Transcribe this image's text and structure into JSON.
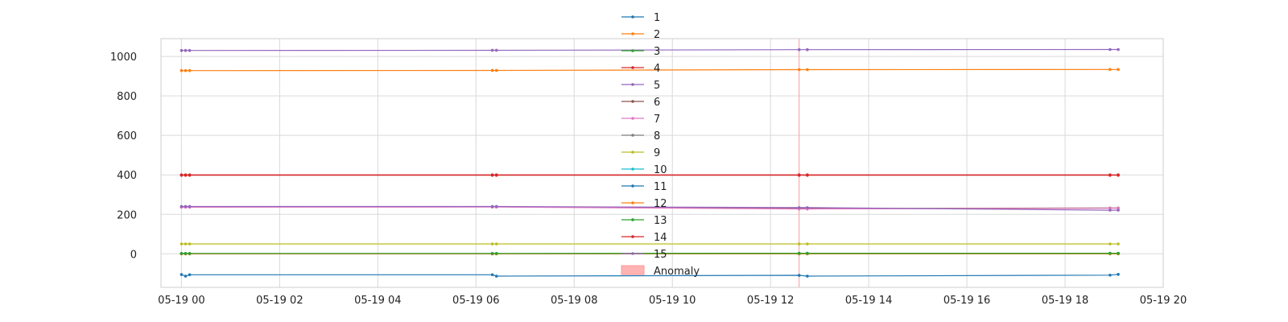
{
  "chart_data": {
    "type": "line",
    "title": "",
    "xlabel": "",
    "ylabel": "",
    "x_axis": {
      "type": "datetime",
      "range": [
        "2024-05-18T23:35",
        "2024-05-19T20:00"
      ],
      "ticks": [
        {
          "t": "2024-05-19T00:00",
          "label": "05-19 00"
        },
        {
          "t": "2024-05-19T02:00",
          "label": "05-19 02"
        },
        {
          "t": "2024-05-19T04:00",
          "label": "05-19 04"
        },
        {
          "t": "2024-05-19T06:00",
          "label": "05-19 06"
        },
        {
          "t": "2024-05-19T08:00",
          "label": "05-19 08"
        },
        {
          "t": "2024-05-19T10:00",
          "label": "05-19 10"
        },
        {
          "t": "2024-05-19T12:00",
          "label": "05-19 12"
        },
        {
          "t": "2024-05-19T14:00",
          "label": "05-19 14"
        },
        {
          "t": "2024-05-19T16:00",
          "label": "05-19 16"
        },
        {
          "t": "2024-05-19T18:00",
          "label": "05-19 18"
        },
        {
          "t": "2024-05-19T20:00",
          "label": "05-19 20"
        }
      ]
    },
    "y_axis": {
      "range": [
        -170,
        1090
      ],
      "ticks": [
        0,
        200,
        400,
        600,
        800,
        1000
      ]
    },
    "grid": true,
    "legend_position": "top-center",
    "x": [
      "2024-05-19T00:00",
      "2024-05-19T00:05",
      "2024-05-19T00:10",
      "2024-05-19T06:20",
      "2024-05-19T06:25",
      "2024-05-19T12:35",
      "2024-05-19T12:45",
      "2024-05-19T18:55",
      "2024-05-19T19:05"
    ],
    "series": [
      {
        "name": "1",
        "color": "#1f77b4",
        "values": [
          -105,
          -113,
          -106,
          -106,
          -113,
          -109,
          -113,
          -108,
          -104
        ]
      },
      {
        "name": "2",
        "color": "#ff7f0e",
        "values": [
          928,
          928,
          928,
          929,
          929,
          933,
          933,
          934,
          934
        ]
      },
      {
        "name": "3",
        "color": "#2ca02c",
        "values": [
          0,
          0,
          0,
          0,
          0,
          0,
          0,
          0,
          0
        ]
      },
      {
        "name": "4",
        "color": "#d62728",
        "values": [
          398,
          398,
          398,
          398,
          398,
          398,
          398,
          398,
          398
        ]
      },
      {
        "name": "5",
        "color": "#9467bd",
        "values": [
          1030,
          1030,
          1030,
          1031,
          1031,
          1034,
          1034,
          1035,
          1035
        ]
      },
      {
        "name": "6",
        "color": "#8c564b",
        "values": [
          238,
          238,
          238,
          238,
          238,
          229,
          229,
          232,
          232
        ]
      },
      {
        "name": "7",
        "color": "#e377c2",
        "values": [
          236,
          236,
          236,
          237,
          237,
          227,
          227,
          231,
          231
        ]
      },
      {
        "name": "8",
        "color": "#7f7f7f",
        "values": [
          1,
          1,
          1,
          1,
          1,
          1,
          1,
          1,
          1
        ]
      },
      {
        "name": "9",
        "color": "#bcbd22",
        "values": [
          50,
          50,
          50,
          50,
          50,
          50,
          50,
          50,
          50
        ]
      },
      {
        "name": "10",
        "color": "#17becf",
        "values": [
          0,
          0,
          0,
          0,
          0,
          0,
          0,
          0,
          0
        ]
      },
      {
        "name": "11",
        "color": "#1f77b4",
        "values": [
          1,
          1,
          1,
          1,
          1,
          2,
          2,
          2,
          2
        ]
      },
      {
        "name": "12",
        "color": "#ff7f0e",
        "values": [
          0,
          0,
          0,
          0,
          0,
          0,
          0,
          0,
          0
        ]
      },
      {
        "name": "13",
        "color": "#2ca02c",
        "values": [
          2,
          2,
          2,
          2,
          2,
          3,
          3,
          3,
          3
        ]
      },
      {
        "name": "14",
        "color": "#d62728",
        "values": [
          400,
          400,
          400,
          400,
          400,
          400,
          400,
          400,
          400
        ]
      },
      {
        "name": "15",
        "color": "#9467bd",
        "values": [
          240,
          240,
          240,
          240,
          240,
          234,
          234,
          221,
          221
        ]
      }
    ],
    "anomaly": {
      "name": "Anomaly",
      "color": "#ff9999",
      "t": "2024-05-19T12:35"
    }
  }
}
